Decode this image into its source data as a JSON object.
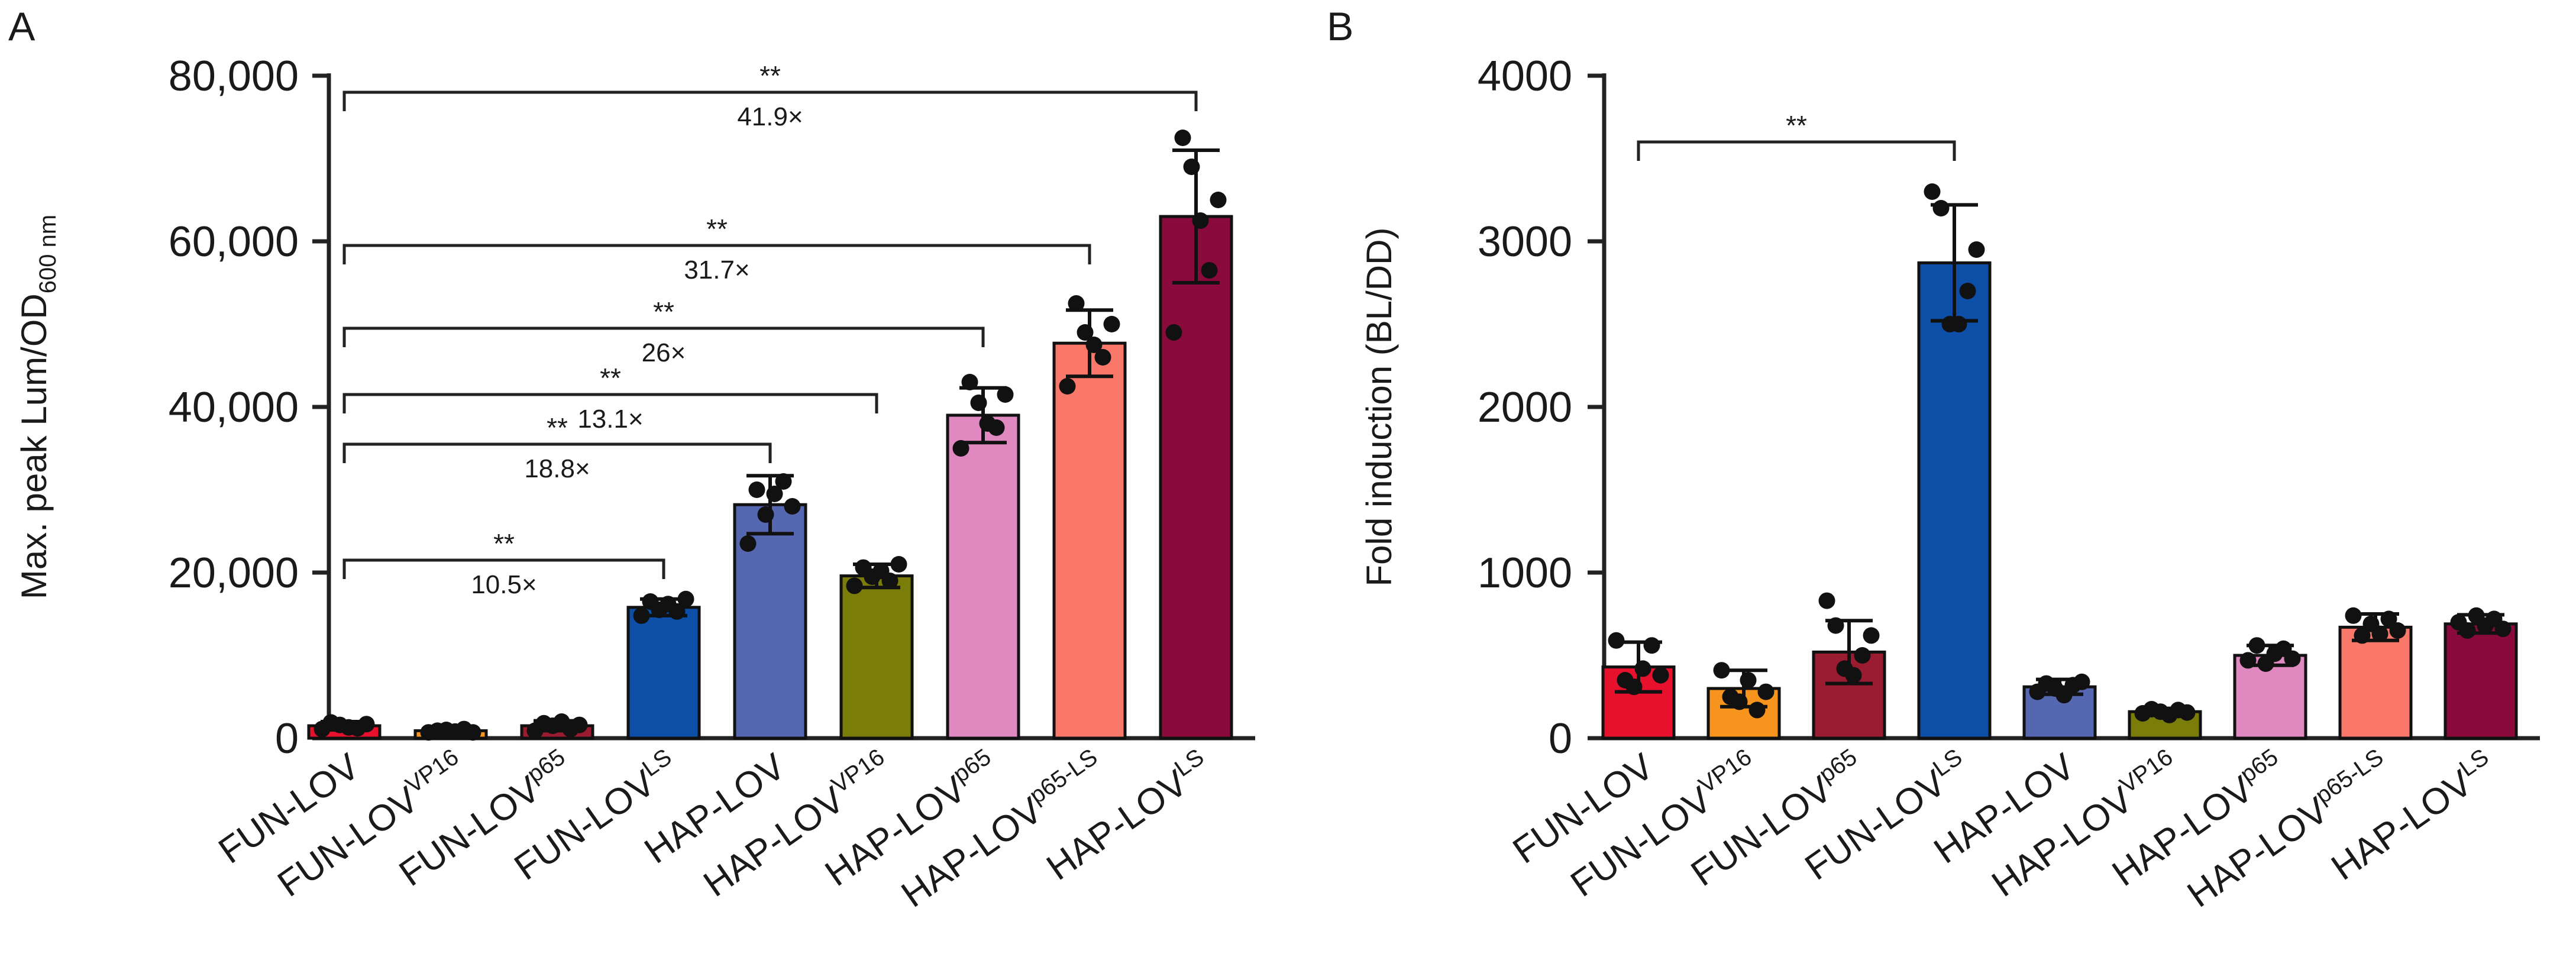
{
  "chart_data": [
    {
      "type": "bar",
      "panel": "A",
      "ylabel": "Max. peak Lum/OD",
      "ylabel_sub": "600 nm",
      "ylim": [
        0,
        80000
      ],
      "yticks": [
        0,
        20000,
        40000,
        60000,
        80000
      ],
      "ytick_labels": [
        "0",
        "20,000",
        "40,000",
        "60,000",
        "80,000"
      ],
      "categories": [
        {
          "base": "FUN-LOV",
          "sup": ""
        },
        {
          "base": "FUN-LOV",
          "sup": "VP16"
        },
        {
          "base": "FUN-LOV",
          "sup": "p65"
        },
        {
          "base": "FUN-LOV",
          "sup": "LS"
        },
        {
          "base": "HAP-LOV",
          "sup": ""
        },
        {
          "base": "HAP-LOV",
          "sup": "VP16"
        },
        {
          "base": "HAP-LOV",
          "sup": "p65"
        },
        {
          "base": "HAP-LOV",
          "sup": "p65-LS"
        },
        {
          "base": "HAP-LOV",
          "sup": "LS"
        }
      ],
      "colors": [
        "#e8112d",
        "#f7941d",
        "#9b1b30",
        "#0d4ea6",
        "#5567b0",
        "#7a7d0a",
        "#e088c0",
        "#f9786a",
        "#8a0a3c"
      ],
      "values": [
        1500,
        900,
        1500,
        15800,
        28200,
        19600,
        39000,
        47700,
        63000
      ],
      "errors": [
        500,
        300,
        600,
        1000,
        3500,
        1400,
        3300,
        4000,
        8000
      ],
      "points": [
        [
          1100,
          1900,
          1600,
          1300,
          1200,
          1700
        ],
        [
          700,
          900,
          1000,
          800,
          1100,
          700
        ],
        [
          900,
          1800,
          1500,
          2000,
          1100,
          1600
        ],
        [
          14800,
          16500,
          15500,
          16200,
          15300,
          16800
        ],
        [
          23500,
          30000,
          27000,
          29500,
          31000,
          28000
        ],
        [
          18400,
          20600,
          19500,
          20200,
          19000,
          21000
        ],
        [
          35000,
          43000,
          40500,
          38000,
          37500,
          41500
        ],
        [
          42500,
          52500,
          49000,
          47500,
          46000,
          50000
        ],
        [
          49000,
          72500,
          69000,
          62500,
          56500,
          65000
        ]
      ],
      "comparisons": [
        {
          "from": 0,
          "to": 3,
          "sig": "**",
          "fold": "10.5×",
          "y": 21500
        },
        {
          "from": 0,
          "to": 4,
          "sig": "**",
          "fold": "18.8×",
          "y": 35500
        },
        {
          "from": 0,
          "to": 5,
          "sig": "**",
          "fold": "13.1×",
          "y": 41500
        },
        {
          "from": 0,
          "to": 6,
          "sig": "**",
          "fold": "26×",
          "y": 49500
        },
        {
          "from": 0,
          "to": 7,
          "sig": "**",
          "fold": "31.7×",
          "y": 59500
        },
        {
          "from": 0,
          "to": 8,
          "sig": "**",
          "fold": "41.9×",
          "y": 78000
        }
      ]
    },
    {
      "type": "bar",
      "panel": "B",
      "ylabel": "Fold induction (BL/DD)",
      "ylim": [
        0,
        4000
      ],
      "yticks": [
        0,
        1000,
        2000,
        3000,
        4000
      ],
      "ytick_labels": [
        "0",
        "1000",
        "2000",
        "3000",
        "4000"
      ],
      "categories": [
        {
          "base": "FUN-LOV",
          "sup": ""
        },
        {
          "base": "FUN-LOV",
          "sup": "VP16"
        },
        {
          "base": "FUN-LOV",
          "sup": "p65"
        },
        {
          "base": "FUN-LOV",
          "sup": "LS"
        },
        {
          "base": "HAP-LOV",
          "sup": ""
        },
        {
          "base": "HAP-LOV",
          "sup": "VP16"
        },
        {
          "base": "HAP-LOV",
          "sup": "p65"
        },
        {
          "base": "HAP-LOV",
          "sup": "p65-LS"
        },
        {
          "base": "HAP-LOV",
          "sup": "LS"
        }
      ],
      "colors": [
        "#e8112d",
        "#f7941d",
        "#9b1b30",
        "#0d4ea6",
        "#5567b0",
        "#7a7d0a",
        "#e088c0",
        "#f9786a",
        "#8a0a3c"
      ],
      "values": [
        430,
        300,
        520,
        2870,
        310,
        160,
        500,
        670,
        690
      ],
      "errors": [
        150,
        110,
        190,
        350,
        45,
        20,
        60,
        80,
        55
      ],
      "points": [
        [
          590,
          350,
          310,
          420,
          560,
          380
        ],
        [
          410,
          250,
          220,
          350,
          170,
          280
        ],
        [
          830,
          680,
          420,
          380,
          500,
          620
        ],
        [
          3300,
          3200,
          2500,
          2500,
          2700,
          2950
        ],
        [
          280,
          330,
          300,
          260,
          320,
          340
        ],
        [
          150,
          175,
          160,
          140,
          170,
          155
        ],
        [
          470,
          560,
          450,
          510,
          540,
          480
        ],
        [
          740,
          620,
          690,
          630,
          720,
          650
        ],
        [
          700,
          650,
          740,
          680,
          720,
          660
        ]
      ],
      "comparisons": [
        {
          "from": 0,
          "to": 3,
          "sig": "**",
          "fold": "",
          "y": 3600
        }
      ]
    }
  ]
}
